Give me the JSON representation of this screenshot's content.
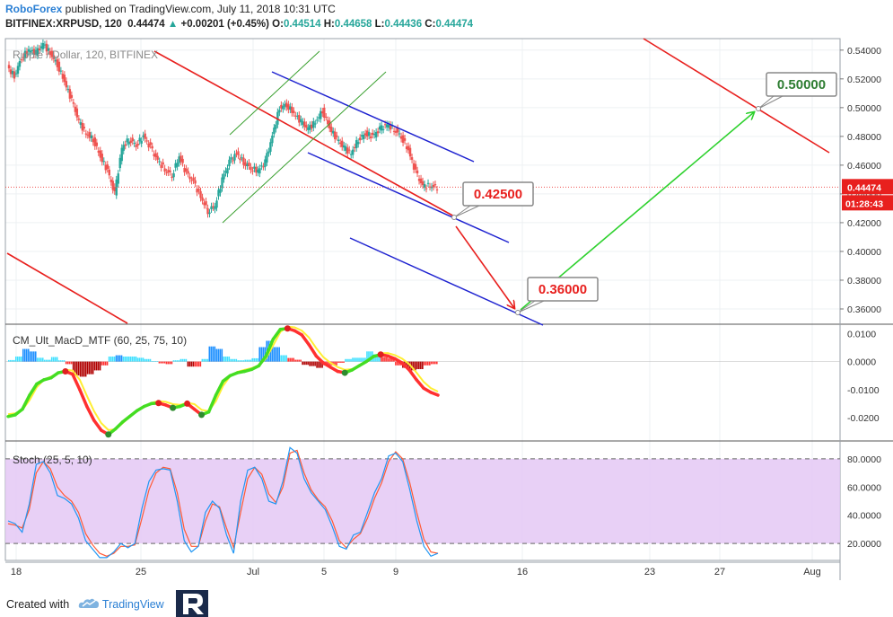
{
  "header": {
    "brand": "RoboForex",
    "published": " published on TradingView.com, July 11, 2018 10:31 UTC",
    "symbol": "BITFINEX:XRPUSD, 120",
    "last": "0.44474",
    "change": "+0.00201 (+0.45%)",
    "open_label": "O:",
    "open": "0.44514",
    "high_label": "H:",
    "high": "0.44658",
    "low_label": "L:",
    "low": "0.44436",
    "close_label": "C:",
    "close": "0.44474"
  },
  "footer": {
    "created": "Created with",
    "brand": "TradingView"
  },
  "colors": {
    "bull": "#26a69a",
    "bear": "#ef5350",
    "trend_red": "#e8201e",
    "channel_blue": "#1e22d0",
    "channel_green": "#3aa030",
    "arrow_green": "#2ed12e",
    "price_tag": "#e8201e",
    "stoch_fill": "#e4c8f4"
  },
  "chart_data": [
    {
      "type": "candlestick",
      "title": "Ripple / Dollar, 120, BITFINEX",
      "ylim": [
        0.35,
        0.548
      ],
      "yticks": [
        "0.54000",
        "0.52000",
        "0.50000",
        "0.48000",
        "0.46000",
        "0.44000",
        "0.42000",
        "0.40000",
        "0.38000",
        "0.36000"
      ],
      "xticks": [
        "18",
        "25",
        "Jul",
        "5",
        "9",
        "16",
        "23",
        "27",
        "Aug"
      ],
      "last_price_label": "0.44474",
      "countdown_label": "01:28:43",
      "price_path": [
        0.528,
        0.522,
        0.535,
        0.54,
        0.538,
        0.544,
        0.538,
        0.53,
        0.518,
        0.505,
        0.49,
        0.482,
        0.478,
        0.466,
        0.456,
        0.44,
        0.472,
        0.478,
        0.474,
        0.48,
        0.472,
        0.463,
        0.457,
        0.453,
        0.466,
        0.454,
        0.448,
        0.438,
        0.428,
        0.432,
        0.45,
        0.462,
        0.468,
        0.462,
        0.458,
        0.456,
        0.462,
        0.48,
        0.5,
        0.502,
        0.496,
        0.49,
        0.485,
        0.49,
        0.498,
        0.486,
        0.478,
        0.472,
        0.468,
        0.478,
        0.482,
        0.48,
        0.485,
        0.488,
        0.485,
        0.48,
        0.47,
        0.455,
        0.445,
        0.446,
        0.4447
      ],
      "annotations": [
        {
          "label": "0.42500",
          "value": 0.425,
          "style": "red-text"
        },
        {
          "label": "0.36000",
          "value": 0.36,
          "style": "red-text"
        },
        {
          "label": "0.50000",
          "value": 0.5,
          "style": "green-text"
        }
      ]
    },
    {
      "type": "line",
      "title": "CM_Ult_MacD_MTF (60, 25, 75, 10)",
      "ylim": [
        -0.028,
        0.013
      ],
      "yticks": [
        "0.0100",
        "0.0000",
        "-0.0100",
        "-0.0200"
      ],
      "macd": [
        -0.0196,
        -0.019,
        -0.017,
        -0.012,
        -0.008,
        -0.0065,
        -0.0058,
        -0.004,
        -0.0035,
        -0.0045,
        -0.01,
        -0.016,
        -0.021,
        -0.0245,
        -0.026,
        -0.024,
        -0.0215,
        -0.0195,
        -0.0175,
        -0.016,
        -0.015,
        -0.0148,
        -0.0155,
        -0.0165,
        -0.016,
        -0.015,
        -0.017,
        -0.019,
        -0.018,
        -0.012,
        -0.007,
        -0.005,
        -0.004,
        -0.0035,
        -0.0028,
        -0.0015,
        0.002,
        0.008,
        0.0115,
        0.0118,
        0.011,
        0.0095,
        0.006,
        0.002,
        -0.0005,
        -0.002,
        -0.0035,
        -0.004,
        -0.003,
        -0.0015,
        0.0,
        0.0018,
        0.0025,
        0.002,
        0.001,
        -0.0005,
        -0.003,
        -0.0065,
        -0.0095,
        -0.011,
        -0.012
      ],
      "zero_line": 0.0
    },
    {
      "type": "line",
      "title": "Stoch (25, 5, 10)",
      "ylim": [
        8,
        92
      ],
      "yticks": [
        "80.0000",
        "60.0000",
        "40.0000",
        "20.0000"
      ],
      "band": [
        20,
        80
      ],
      "k": [
        36,
        34,
        28,
        48,
        76,
        78,
        70,
        54,
        52,
        48,
        38,
        22,
        16,
        10,
        10,
        14,
        20,
        17,
        20,
        45,
        64,
        72,
        73,
        72,
        50,
        22,
        14,
        18,
        42,
        50,
        45,
        26,
        13,
        50,
        72,
        74,
        66,
        50,
        48,
        64,
        88,
        84,
        66,
        56,
        50,
        44,
        32,
        18,
        16,
        26,
        28,
        42,
        56,
        66,
        82,
        84,
        78,
        58,
        36,
        18,
        11,
        13
      ],
      "d": [
        34,
        33,
        31,
        44,
        70,
        78,
        73,
        60,
        54,
        50,
        42,
        27,
        19,
        13,
        11,
        13,
        18,
        18,
        19,
        38,
        58,
        70,
        74,
        73,
        56,
        30,
        18,
        18,
        36,
        48,
        46,
        31,
        17,
        42,
        66,
        74,
        69,
        55,
        49,
        60,
        84,
        86,
        70,
        58,
        51,
        46,
        36,
        22,
        17,
        23,
        27,
        38,
        52,
        63,
        78,
        85,
        80,
        63,
        42,
        23,
        14,
        13
      ]
    }
  ]
}
